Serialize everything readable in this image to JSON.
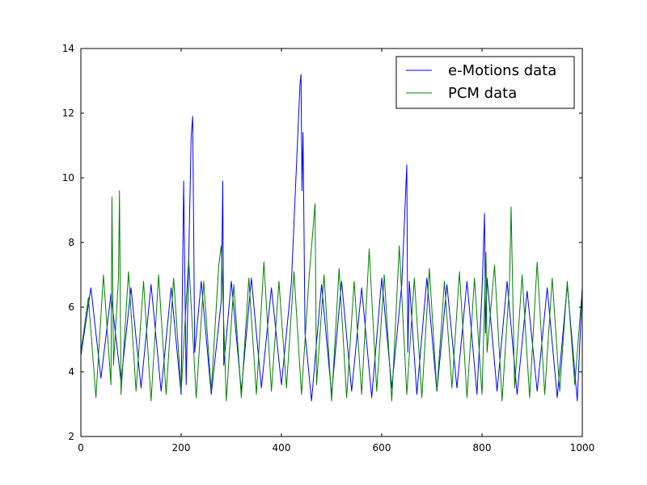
{
  "chart_data": {
    "type": "line",
    "title": "",
    "xlabel": "",
    "ylabel": "",
    "xlim": [
      0,
      1000
    ],
    "ylim": [
      2,
      14
    ],
    "x_ticks": [
      0,
      200,
      400,
      600,
      800,
      1000
    ],
    "y_ticks": [
      2,
      4,
      6,
      8,
      10,
      12,
      14
    ],
    "x_tick_labels": [
      "0",
      "200",
      "400",
      "600",
      "800",
      "1000"
    ],
    "y_tick_labels": [
      "2",
      "4",
      "6",
      "8",
      "10",
      "12",
      "14"
    ],
    "grid": false,
    "legend_position": "top-right",
    "series": [
      {
        "name": "e-Motions data",
        "color": "#0000ff",
        "x": [
          0,
          20,
          40,
          60,
          80,
          100,
          120,
          140,
          160,
          180,
          200,
          205,
          210,
          220,
          223,
          225,
          227,
          240,
          260,
          280,
          283,
          285,
          300,
          320,
          340,
          360,
          380,
          400,
          420,
          437,
          439,
          441,
          443,
          445,
          447,
          460,
          480,
          500,
          520,
          540,
          560,
          580,
          600,
          620,
          640,
          650,
          652,
          655,
          670,
          690,
          710,
          730,
          750,
          770,
          790,
          800,
          805,
          807,
          810,
          830,
          850,
          870,
          890,
          910,
          930,
          950,
          970,
          990,
          1000
        ],
        "y": [
          4.5,
          6.6,
          3.8,
          6.4,
          3.7,
          6.6,
          3.5,
          6.7,
          3.4,
          6.6,
          3.3,
          9.9,
          3.6,
          11.3,
          11.9,
          8.3,
          4.6,
          6.8,
          3.3,
          6.2,
          9.9,
          4.2,
          6.8,
          3.4,
          6.9,
          3.5,
          6.6,
          3.6,
          6.8,
          12.9,
          13.2,
          9.6,
          11.4,
          8.4,
          5.2,
          3.1,
          6.7,
          3.3,
          6.8,
          3.4,
          6.6,
          3.2,
          6.9,
          3.5,
          6.7,
          10.4,
          4.6,
          6.8,
          3.3,
          6.9,
          3.4,
          6.7,
          3.5,
          6.8,
          3.3,
          6.5,
          8.9,
          5.2,
          6.9,
          3.4,
          6.8,
          3.3,
          6.5,
          3.4,
          6.6,
          3.2,
          6.7,
          3.1,
          6.6
        ]
      },
      {
        "name": "PCM data",
        "color": "#008000",
        "x": [
          0,
          15,
          30,
          45,
          60,
          62,
          65,
          75,
          77,
          80,
          95,
          110,
          125,
          140,
          155,
          170,
          185,
          200,
          215,
          230,
          245,
          260,
          275,
          280,
          290,
          305,
          320,
          335,
          350,
          365,
          380,
          395,
          410,
          425,
          440,
          455,
          467,
          470,
          485,
          500,
          515,
          530,
          545,
          560,
          575,
          590,
          605,
          620,
          635,
          650,
          665,
          680,
          695,
          710,
          725,
          740,
          755,
          770,
          785,
          800,
          808,
          810,
          825,
          840,
          855,
          858,
          865,
          880,
          895,
          910,
          925,
          940,
          955,
          970,
          985,
          1000
        ],
        "y": [
          4.6,
          6.3,
          3.2,
          7.0,
          3.6,
          9.4,
          4.2,
          6.9,
          9.6,
          3.3,
          7.1,
          3.4,
          6.8,
          3.1,
          7.0,
          3.3,
          6.9,
          3.4,
          7.5,
          3.2,
          6.8,
          3.4,
          7.3,
          7.9,
          3.1,
          6.7,
          3.2,
          6.9,
          3.3,
          7.4,
          3.4,
          6.8,
          3.5,
          7.1,
          3.3,
          6.9,
          9.2,
          3.6,
          7.0,
          3.1,
          7.2,
          3.2,
          6.8,
          3.3,
          7.8,
          3.4,
          7.0,
          3.1,
          7.9,
          3.3,
          6.9,
          3.2,
          7.2,
          3.4,
          6.8,
          3.5,
          7.1,
          3.2,
          6.9,
          3.3,
          7.7,
          4.6,
          7.3,
          3.1,
          6.8,
          9.1,
          3.5,
          7.0,
          3.2,
          7.4,
          3.3,
          6.9,
          3.4,
          6.8,
          3.6,
          6.6
        ]
      }
    ]
  }
}
